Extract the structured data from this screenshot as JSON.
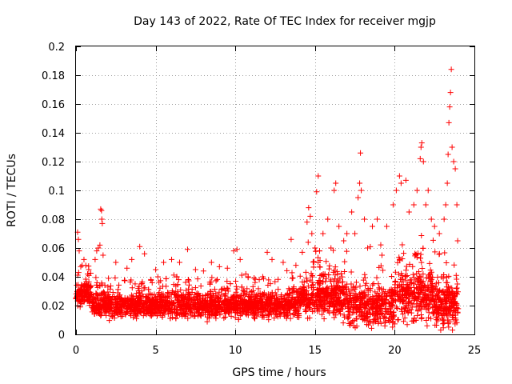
{
  "chart_data": {
    "type": "scatter",
    "title": "Day 143 of 2022, Rate Of TEC Index for receiver mgjp",
    "xlabel": "GPS time / hours",
    "ylabel": "ROTI / TECUs",
    "xlim": [
      0,
      25
    ],
    "ylim": [
      0,
      0.2
    ],
    "x_ticks": [
      0,
      5,
      10,
      15,
      20,
      25
    ],
    "x_tick_labels": [
      "0",
      "5",
      "10",
      "15",
      "20",
      "25"
    ],
    "y_ticks": [
      0,
      0.02,
      0.04,
      0.06,
      0.08,
      0.1,
      0.12,
      0.14,
      0.16,
      0.18,
      0.2
    ],
    "y_tick_labels": [
      "0",
      "0.02",
      "0.04",
      "0.06",
      "0.08",
      "0.1",
      "0.12",
      "0.14",
      "0.16",
      "0.18",
      "0.2"
    ],
    "grid": true,
    "marker": "+",
    "series": [
      {
        "name": "ROTI",
        "color": "#ff0000",
        "points": [
          [
            0.1,
            0.071
          ],
          [
            0.15,
            0.066
          ],
          [
            0.2,
            0.058
          ],
          [
            0.3,
            0.047
          ],
          [
            0.5,
            0.052
          ],
          [
            0.8,
            0.045
          ],
          [
            1.2,
            0.052
          ],
          [
            1.3,
            0.058
          ],
          [
            1.4,
            0.06
          ],
          [
            1.5,
            0.062
          ],
          [
            1.55,
            0.087
          ],
          [
            1.6,
            0.086
          ],
          [
            1.62,
            0.08
          ],
          [
            1.65,
            0.077
          ],
          [
            1.7,
            0.055
          ],
          [
            2.5,
            0.05
          ],
          [
            3.2,
            0.046
          ],
          [
            3.5,
            0.052
          ],
          [
            4.0,
            0.061
          ],
          [
            4.3,
            0.056
          ],
          [
            5.0,
            0.045
          ],
          [
            5.5,
            0.05
          ],
          [
            6.0,
            0.052
          ],
          [
            6.5,
            0.05
          ],
          [
            7.0,
            0.059
          ],
          [
            7.5,
            0.045
          ],
          [
            8.0,
            0.044
          ],
          [
            8.5,
            0.05
          ],
          [
            9.0,
            0.047
          ],
          [
            9.5,
            0.046
          ],
          [
            9.9,
            0.058
          ],
          [
            10.1,
            0.059
          ],
          [
            10.3,
            0.052
          ],
          [
            10.8,
            0.04
          ],
          [
            11.5,
            0.038
          ],
          [
            12.0,
            0.057
          ],
          [
            12.3,
            0.052
          ],
          [
            13.0,
            0.05
          ],
          [
            13.5,
            0.066
          ],
          [
            13.8,
            0.048
          ],
          [
            14.2,
            0.057
          ],
          [
            14.5,
            0.078
          ],
          [
            14.6,
            0.088
          ],
          [
            14.7,
            0.082
          ],
          [
            14.8,
            0.07
          ],
          [
            15.0,
            0.06
          ],
          [
            15.1,
            0.099
          ],
          [
            15.2,
            0.11
          ],
          [
            15.5,
            0.07
          ],
          [
            15.8,
            0.08
          ],
          [
            16.0,
            0.06
          ],
          [
            16.2,
            0.1
          ],
          [
            16.3,
            0.105
          ],
          [
            16.5,
            0.075
          ],
          [
            16.8,
            0.065
          ],
          [
            17.0,
            0.07
          ],
          [
            17.3,
            0.085
          ],
          [
            17.5,
            0.07
          ],
          [
            17.7,
            0.095
          ],
          [
            17.8,
            0.105
          ],
          [
            17.85,
            0.126
          ],
          [
            17.9,
            0.1
          ],
          [
            18.1,
            0.08
          ],
          [
            18.3,
            0.06
          ],
          [
            18.6,
            0.075
          ],
          [
            18.9,
            0.08
          ],
          [
            19.2,
            0.055
          ],
          [
            19.5,
            0.075
          ],
          [
            19.9,
            0.09
          ],
          [
            20.1,
            0.1
          ],
          [
            20.3,
            0.11
          ],
          [
            20.4,
            0.105
          ],
          [
            20.7,
            0.107
          ],
          [
            20.9,
            0.085
          ],
          [
            21.2,
            0.09
          ],
          [
            21.4,
            0.1
          ],
          [
            21.6,
            0.122
          ],
          [
            21.65,
            0.13
          ],
          [
            21.7,
            0.133
          ],
          [
            21.8,
            0.12
          ],
          [
            21.95,
            0.09
          ],
          [
            22.1,
            0.1
          ],
          [
            22.3,
            0.08
          ],
          [
            22.5,
            0.075
          ],
          [
            22.8,
            0.07
          ],
          [
            23.1,
            0.08
          ],
          [
            23.2,
            0.09
          ],
          [
            23.3,
            0.105
          ],
          [
            23.35,
            0.125
          ],
          [
            23.4,
            0.147
          ],
          [
            23.45,
            0.158
          ],
          [
            23.5,
            0.168
          ],
          [
            23.55,
            0.184
          ],
          [
            23.6,
            0.13
          ],
          [
            23.7,
            0.12
          ],
          [
            23.8,
            0.115
          ],
          [
            23.9,
            0.09
          ],
          [
            23.95,
            0.065
          ]
        ]
      }
    ]
  }
}
